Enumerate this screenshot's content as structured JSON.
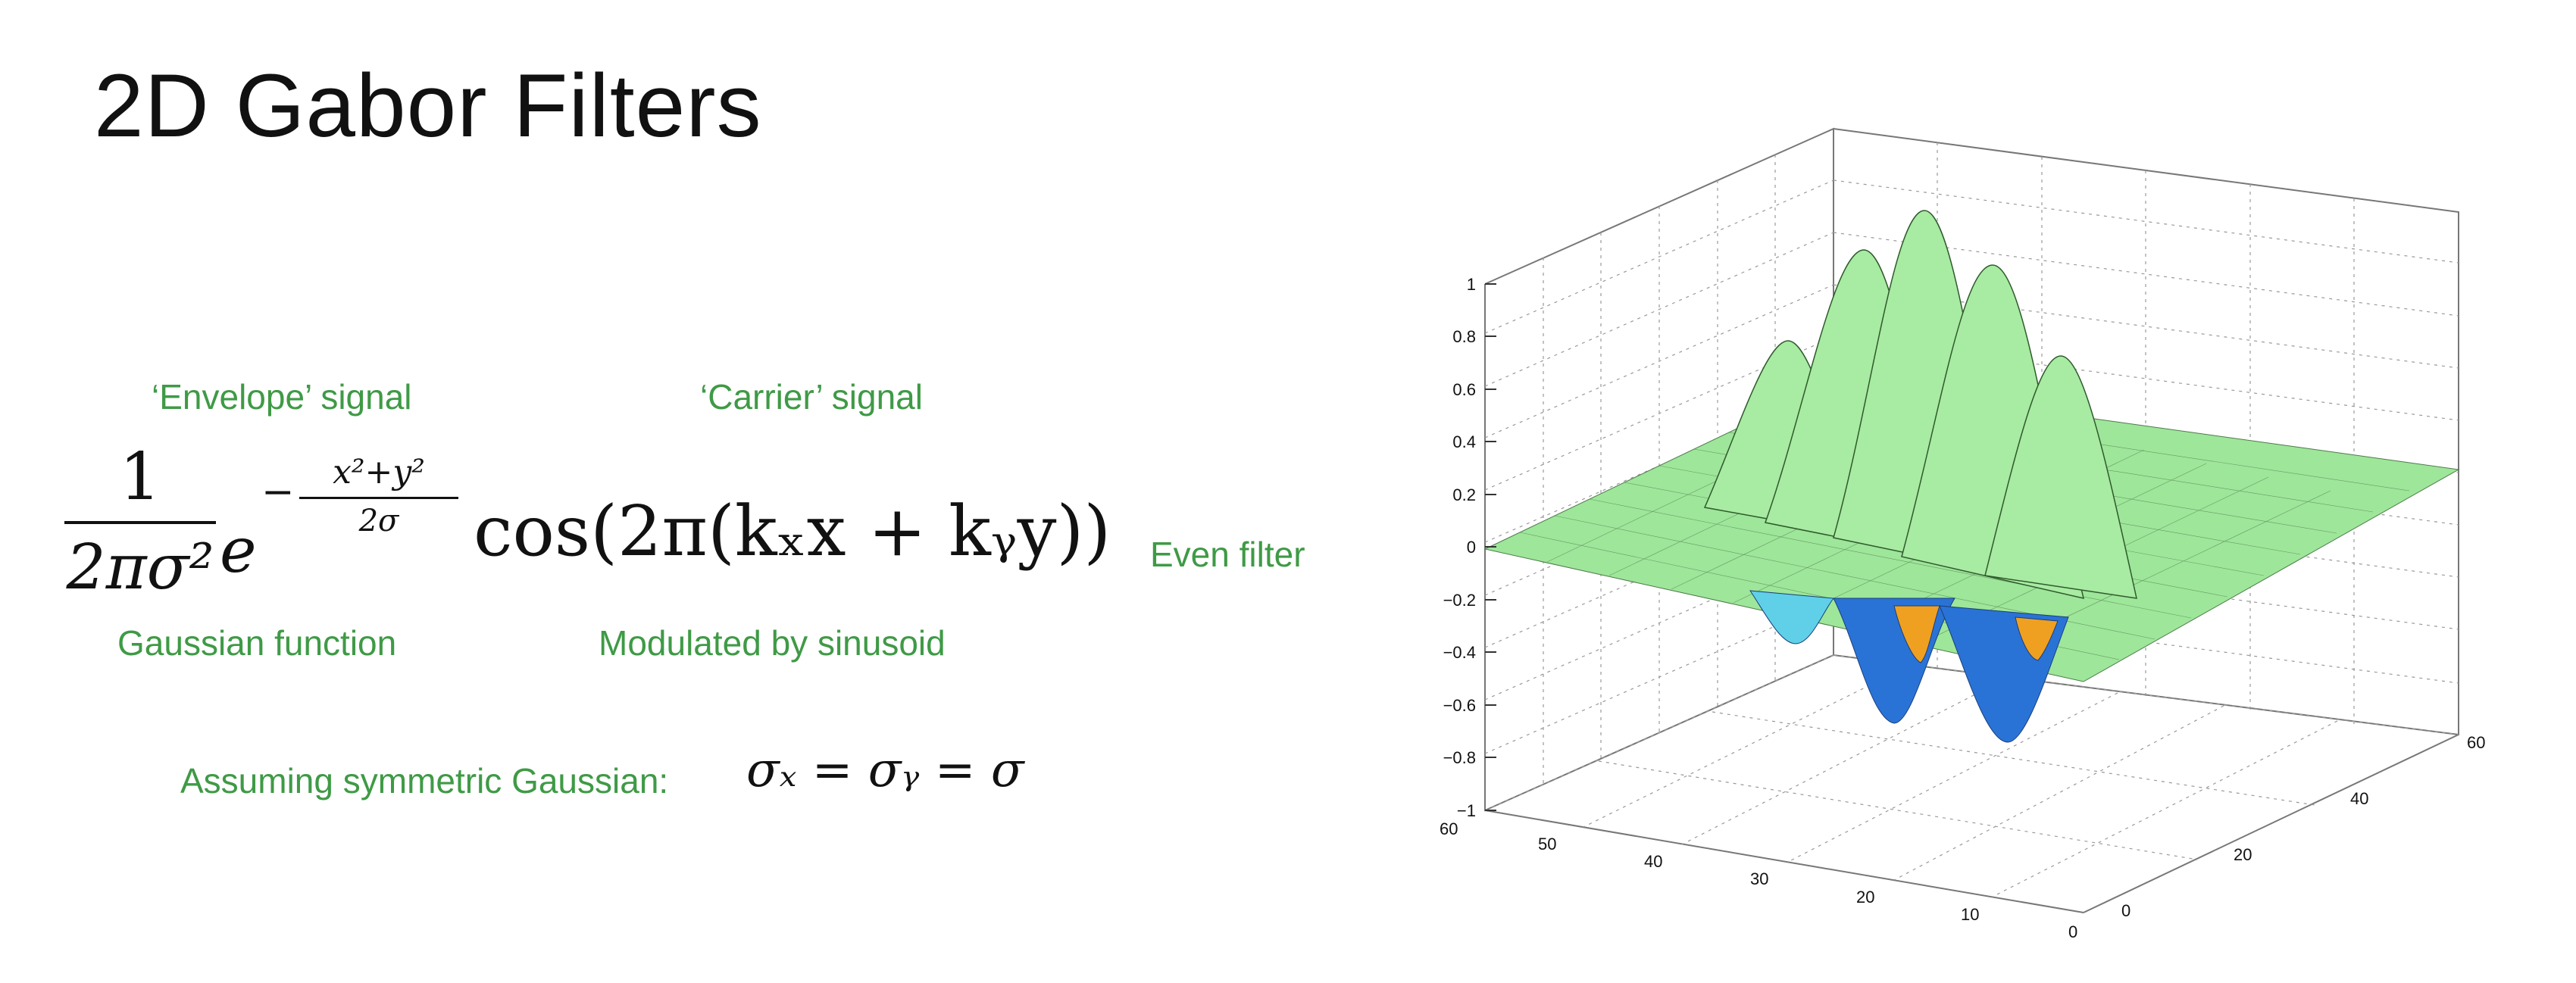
{
  "title": "2D Gabor Filters",
  "labels": {
    "envelope": "‘Envelope’ signal",
    "carrier": "‘Carrier’ signal",
    "gaussian": "Gaussian function",
    "modulated": "Modulated by sinusoid",
    "assuming": "Assuming symmetric Gaussian:",
    "even_filter": "Even filter"
  },
  "formula": {
    "numerator": "1",
    "denominator": "2πσ²",
    "base": "e",
    "exp_sign": "−",
    "exp_numerator": "x²+y²",
    "exp_denominator": "2σ",
    "carrier": "cos(2π(kₓx + kᵧy))",
    "symmetric": "σₓ = σᵧ = σ"
  },
  "plot": {
    "z_ticks": [
      "1",
      "0.8",
      "0.6",
      "0.4",
      "0.2",
      "0",
      "−0.2",
      "−0.4",
      "−0.6",
      "−0.8",
      "−1"
    ],
    "x_ticks": [
      "60",
      "50",
      "40",
      "30",
      "20",
      "10",
      "0"
    ],
    "y_ticks": [
      "0",
      "20",
      "40",
      "60"
    ],
    "colors": {
      "surface_positive": "#9ee69a",
      "surface_negative": "#2a73d6",
      "surface_mid": "#5fd0e8",
      "surface_warm": "#f0a020",
      "label_green": "#3f9a46"
    }
  }
}
